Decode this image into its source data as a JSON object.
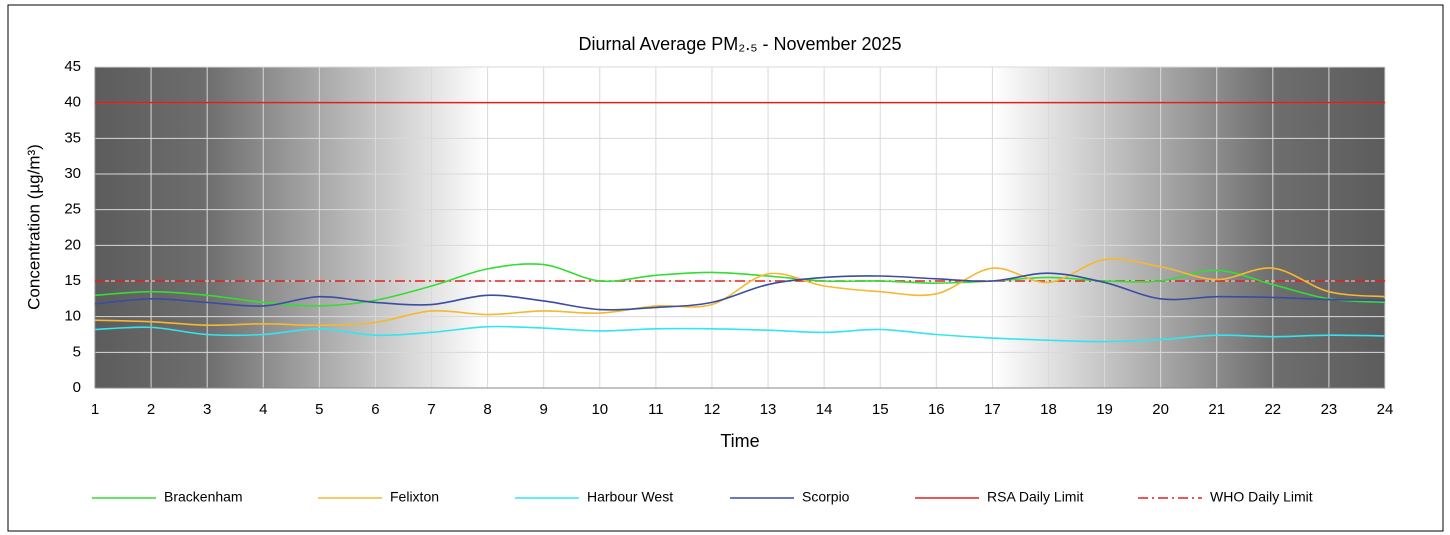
{
  "chart_data": {
    "type": "line",
    "title": "Diurnal Average PM₂.₅ - November 2025",
    "xlabel": "Time",
    "ylabel": "Concentration (µg/m³)",
    "x": [
      1,
      2,
      3,
      4,
      5,
      6,
      7,
      8,
      9,
      10,
      11,
      12,
      13,
      14,
      15,
      16,
      17,
      18,
      19,
      20,
      21,
      22,
      23,
      24
    ],
    "xlim": [
      1,
      24
    ],
    "xticks": [
      1,
      2,
      3,
      4,
      5,
      6,
      7,
      8,
      9,
      10,
      11,
      12,
      13,
      14,
      15,
      16,
      17,
      18,
      19,
      20,
      21,
      22,
      23,
      24
    ],
    "ylim": [
      0,
      45
    ],
    "yticks": [
      0,
      5,
      10,
      15,
      20,
      25,
      30,
      35,
      40,
      45
    ],
    "grid": true,
    "series": [
      {
        "name": "Brackenham",
        "color": "#33dd33",
        "values": [
          13,
          13.5,
          13,
          12,
          11.5,
          12.3,
          14.3,
          16.7,
          17.3,
          15,
          15.8,
          16.2,
          15.7,
          15,
          15,
          14.7,
          15,
          15.5,
          15,
          15,
          16.5,
          14.5,
          12.5,
          12
        ]
      },
      {
        "name": "Felixton",
        "color": "#f5b830",
        "values": [
          9.5,
          9.3,
          8.8,
          9,
          8.8,
          9.2,
          10.8,
          10.3,
          10.8,
          10.5,
          11.5,
          11.7,
          16,
          14.3,
          13.5,
          13.2,
          16.8,
          14.8,
          18,
          17,
          15.2,
          16.8,
          13.5,
          12.8
        ]
      },
      {
        "name": "Harbour West",
        "color": "#33e5f0",
        "values": [
          8.2,
          8.5,
          7.5,
          7.5,
          8.3,
          7.4,
          7.8,
          8.6,
          8.4,
          8,
          8.3,
          8.3,
          8.1,
          7.8,
          8.2,
          7.5,
          7,
          6.7,
          6.5,
          6.8,
          7.4,
          7.2,
          7.4,
          7.3
        ]
      },
      {
        "name": "Scorpio",
        "color": "#3a4da0",
        "values": [
          11.8,
          12.5,
          12,
          11.5,
          12.8,
          12,
          11.7,
          13,
          12.2,
          11,
          11.3,
          12,
          14.5,
          15.5,
          15.7,
          15.3,
          15,
          16.1,
          14.8,
          12.5,
          12.8,
          12.7,
          12.4,
          12.3
        ]
      }
    ],
    "limits": [
      {
        "name": "RSA Daily Limit",
        "color": "#e02020",
        "value": 40,
        "dash": false
      },
      {
        "name": "WHO Daily Limit",
        "color": "#e02020",
        "value": 15,
        "dash": true
      }
    ]
  }
}
